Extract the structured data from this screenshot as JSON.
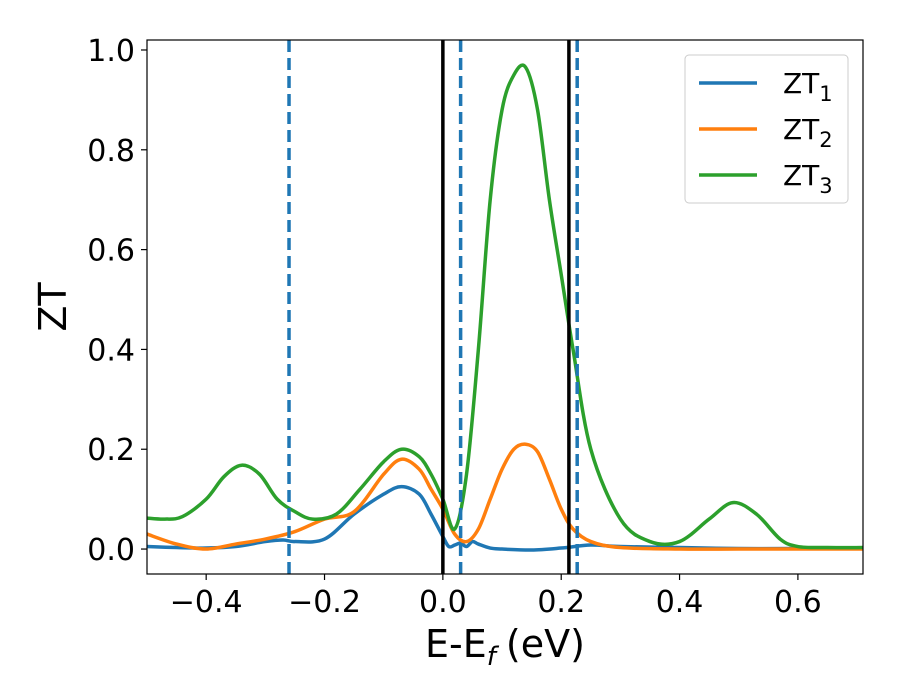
{
  "chart_data": {
    "type": "line",
    "xlabel": "E-E",
    "xlabel_sub": "f",
    "xlabel_unit": "(eV)",
    "ylabel": "ZT",
    "xlim": [
      -0.5,
      0.71
    ],
    "ylim": [
      -0.05,
      1.02
    ],
    "xticks": [
      -0.4,
      -0.2,
      0.0,
      0.2,
      0.4,
      0.6
    ],
    "xtick_labels": [
      "−0.4",
      "−0.2",
      "0.0",
      "0.2",
      "0.4",
      "0.6"
    ],
    "yticks": [
      0.0,
      0.2,
      0.4,
      0.6,
      0.8,
      1.0
    ],
    "ytick_labels": [
      "0.0",
      "0.2",
      "0.4",
      "0.6",
      "0.8",
      "1.0"
    ],
    "grid": false,
    "legend_position": "top-right",
    "series": [
      {
        "name": "ZT",
        "name_sub": "1",
        "color": "#1f77b4",
        "x": [
          -0.5,
          -0.45,
          -0.4,
          -0.35,
          -0.3,
          -0.27,
          -0.25,
          -0.2,
          -0.15,
          -0.1,
          -0.07,
          -0.04,
          -0.02,
          0.0,
          0.01,
          0.02,
          0.03,
          0.04,
          0.05,
          0.06,
          0.08,
          0.1,
          0.15,
          0.2,
          0.25,
          0.3,
          0.4,
          0.5,
          0.6,
          0.71
        ],
        "y": [
          0.005,
          0.003,
          0.002,
          0.005,
          0.015,
          0.018,
          0.015,
          0.02,
          0.07,
          0.11,
          0.125,
          0.11,
          0.07,
          0.025,
          0.005,
          0.008,
          0.012,
          0.005,
          0.015,
          0.01,
          0.002,
          0.0,
          -0.002,
          0.002,
          0.008,
          0.005,
          0.003,
          0.001,
          0.001,
          0.001
        ]
      },
      {
        "name": "ZT",
        "name_sub": "2",
        "color": "#ff7f0e",
        "x": [
          -0.5,
          -0.45,
          -0.4,
          -0.35,
          -0.3,
          -0.25,
          -0.2,
          -0.15,
          -0.1,
          -0.07,
          -0.04,
          -0.02,
          0.0,
          0.02,
          0.04,
          0.06,
          0.08,
          0.1,
          0.12,
          0.14,
          0.16,
          0.18,
          0.2,
          0.22,
          0.25,
          0.3,
          0.4,
          0.5,
          0.6,
          0.71
        ],
        "y": [
          0.03,
          0.01,
          0.0,
          0.01,
          0.02,
          0.035,
          0.06,
          0.075,
          0.15,
          0.18,
          0.16,
          0.12,
          0.08,
          0.03,
          0.015,
          0.04,
          0.1,
          0.16,
          0.2,
          0.21,
          0.195,
          0.14,
          0.08,
          0.04,
          0.015,
          0.003,
          0.0,
          0.0,
          0.0,
          0.0
        ]
      },
      {
        "name": "ZT",
        "name_sub": "3",
        "color": "#2ca02c",
        "x": [
          -0.5,
          -0.47,
          -0.44,
          -0.4,
          -0.37,
          -0.34,
          -0.31,
          -0.28,
          -0.25,
          -0.22,
          -0.18,
          -0.14,
          -0.1,
          -0.07,
          -0.04,
          -0.02,
          0.0,
          0.02,
          0.04,
          0.06,
          0.08,
          0.1,
          0.12,
          0.14,
          0.16,
          0.18,
          0.2,
          0.22,
          0.25,
          0.3,
          0.35,
          0.4,
          0.45,
          0.49,
          0.53,
          0.57,
          0.6,
          0.65,
          0.71
        ],
        "y": [
          0.062,
          0.06,
          0.065,
          0.1,
          0.145,
          0.168,
          0.15,
          0.1,
          0.075,
          0.06,
          0.07,
          0.12,
          0.175,
          0.2,
          0.185,
          0.15,
          0.1,
          0.04,
          0.15,
          0.4,
          0.7,
          0.88,
          0.95,
          0.965,
          0.88,
          0.7,
          0.55,
          0.4,
          0.2,
          0.06,
          0.015,
          0.015,
          0.06,
          0.093,
          0.07,
          0.02,
          0.005,
          0.003,
          0.003
        ]
      }
    ],
    "vertical_lines": [
      {
        "x": -0.26,
        "style": "dashed",
        "color": "#1f77b4"
      },
      {
        "x": 0.03,
        "style": "dashed",
        "color": "#1f77b4"
      },
      {
        "x": 0.227,
        "style": "dashed",
        "color": "#1f77b4"
      },
      {
        "x": 0.0,
        "style": "solid",
        "color": "#000000"
      },
      {
        "x": 0.213,
        "style": "solid",
        "color": "#000000"
      }
    ]
  }
}
